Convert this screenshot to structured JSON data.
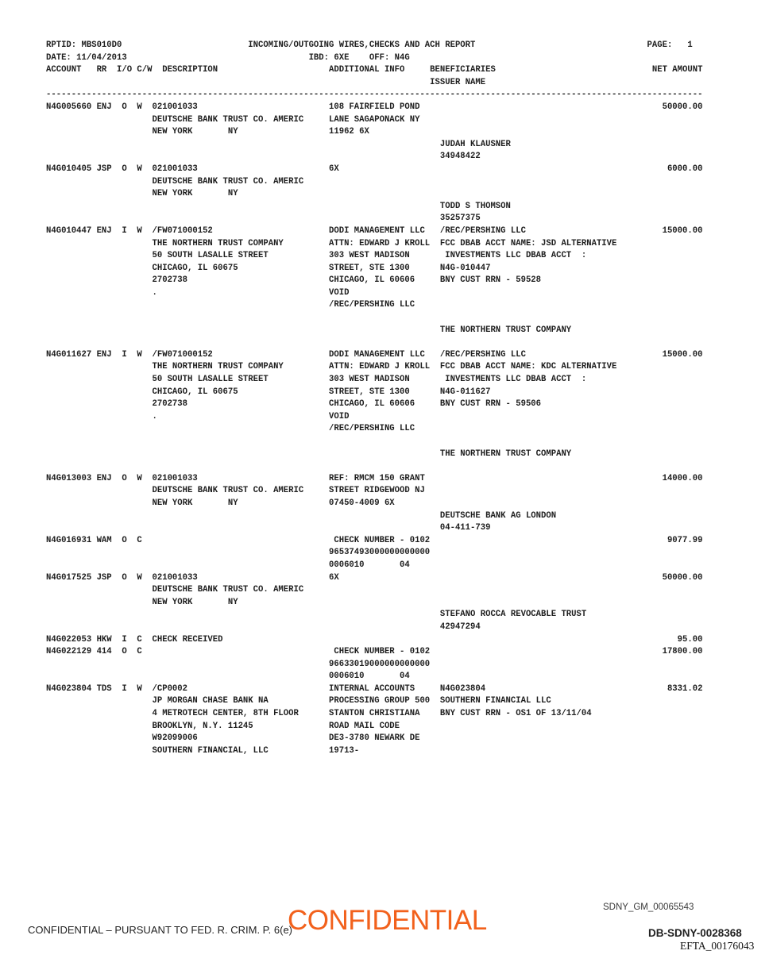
{
  "meta": {
    "rptid": "MBS010D0",
    "title": "INCOMING/OUTGOING WIRES,CHECKS AND ACH REPORT",
    "date": "11/04/2013",
    "page_label": "PAGE:",
    "page_number": "1",
    "ibd": "6XE",
    "off": "N4G",
    "column_headers": [
      "ACCOUNT",
      "RR",
      "I/O",
      "C/W",
      "DESCRIPTION",
      "ADDITIONAL INFO",
      "BENEFICIARIES",
      "ISSUER NAME",
      "NET AMOUNT"
    ]
  },
  "entries_summary": [
    {
      "account": "N4G005660",
      "rr": "ENJ",
      "io": "O",
      "cw": "W",
      "description": "021001033 DEUTSCHE BANK TRUST CO. AMERIC NEW YORK NY",
      "additional_info": "108 FAIRFIELD POND LANE SAGAPONACK NY 11962 6X",
      "issuer": "JUDAH KLAUSNER 34948422",
      "net_amount": "50000.00"
    },
    {
      "account": "N4G010405",
      "rr": "JSP",
      "io": "O",
      "cw": "W",
      "description": "021001033 DEUTSCHE BANK TRUST CO. AMERIC NEW YORK NY",
      "additional_info": "6X",
      "issuer": "TODD S THOMSON 35257375",
      "net_amount": "6000.00"
    },
    {
      "account": "N4G010447",
      "rr": "ENJ",
      "io": "I",
      "cw": "W",
      "description": "/FW071000152 THE NORTHERN TRUST COMPANY 50 SOUTH LASALLE STREET CHICAGO, IL 60675 2702738 .",
      "additional_info": "DODI MANAGEMENT LLC ATTN: EDWARD J KROLL 303 WEST MADISON STREET, STE 1300 CHICAGO, IL 60606 VOID /REC/PERSHING LLC",
      "beneficiaries": "/REC/PERSHING LLC FCC DBAB ACCT NAME: JSD ALTERNATIVE INVESTMENTS LLC DBAB ACCT : N4G-010447 BNY CUST RRN - 59528",
      "issuer": "THE NORTHERN TRUST COMPANY",
      "net_amount": "15000.00"
    },
    {
      "account": "N4G011627",
      "rr": "ENJ",
      "io": "I",
      "cw": "W",
      "description": "/FW071000152 THE NORTHERN TRUST COMPANY 50 SOUTH LASALLE STREET CHICAGO, IL 60675 2702738 .",
      "additional_info": "DODI MANAGEMENT LLC ATTN: EDWARD J KROLL 303 WEST MADISON STREET, STE 1300 CHICAGO, IL 60606 VOID /REC/PERSHING LLC",
      "beneficiaries": "/REC/PERSHING LLC FCC DBAB ACCT NAME: KDC ALTERNATIVE INVESTMENTS LLC DBAB ACCT : N4G-011627 BNY CUST RRN - 59506",
      "issuer": "THE NORTHERN TRUST COMPANY",
      "net_amount": "15000.00"
    },
    {
      "account": "N4G013003",
      "rr": "ENJ",
      "io": "O",
      "cw": "W",
      "description": "021001033 DEUTSCHE BANK TRUST CO. AMERIC NEW YORK NY",
      "additional_info": "REF: RMCM 150 GRANT STREET RIDGEWOOD NJ 07450-4009 6X",
      "issuer": "DEUTSCHE BANK AG LONDON 04-411-739",
      "net_amount": "14000.00"
    },
    {
      "account": "N4G016931",
      "rr": "WAM",
      "io": "O",
      "cw": "C",
      "additional_info": "CHECK NUMBER - 0102 96537493000000000000 0006010 04",
      "net_amount": "9077.99"
    },
    {
      "account": "N4G017525",
      "rr": "JSP",
      "io": "O",
      "cw": "W",
      "description": "021001033 DEUTSCHE BANK TRUST CO. AMERIC NEW YORK NY",
      "additional_info": "6X",
      "issuer": "STEFANO ROCCA REVOCABLE TRUST 42947294",
      "net_amount": "50000.00"
    },
    {
      "account": "N4G022053",
      "rr": "HKW",
      "io": "I",
      "cw": "C",
      "description": "CHECK RECEIVED",
      "net_amount": "95.00"
    },
    {
      "account": "N4G022129",
      "rr": "414",
      "io": "O",
      "cw": "C",
      "additional_info": "CHECK NUMBER - 0102 96633019000000000000 0006010 04",
      "net_amount": "17800.00"
    },
    {
      "account": "N4G023804",
      "rr": "TDS",
      "io": "I",
      "cw": "W",
      "description": "/CP0002 JP MORGAN CHASE BANK NA 4 METROTECH CENTER, 8TH FLOOR BROOKLYN, N.Y. 11245 W92099006 SOUTHERN FINANCIAL, LLC",
      "additional_info": "INTERNAL ACCOUNTS PROCESSING GROUP 500 STANTON CHRISTIANA ROAD MAIL CODE DE3-3780 NEWARK DE 19713-",
      "beneficiaries": "N4G023804 SOUTHERN FINANCIAL LLC BNY CUST RRN - OS1 OF 13/11/04",
      "net_amount": "8331.02"
    }
  ],
  "report": {
    "lines": [
      [
        [
          0,
          "RPTID: MBS010D0"
        ],
        [
          40,
          "INCOMING/OUTGOING WIRES,CHECKS AND ACH REPORT"
        ],
        [
          119,
          "PAGE:"
        ],
        [
          127,
          "1"
        ]
      ],
      [
        [
          0,
          "DATE: 11/04/2013"
        ],
        [
          52,
          "IBD: 6XE    OFF: N4G"
        ]
      ],
      [
        [
          0,
          "ACCOUNT   RR  I/O C/W  DESCRIPTION"
        ],
        [
          56,
          "ADDITIONAL INFO"
        ],
        [
          76,
          "BENEFICIARIES"
        ],
        [
          120,
          "NET AMOUNT"
        ]
      ],
      [
        [
          76,
          "ISSUER NAME"
        ]
      ],
      [
        [
          0,
          "----------------------------------------------------------------------------------------------------------------------------------"
        ]
      ],
      [
        [
          0,
          "N4G005660 ENJ  O  W  021001033"
        ],
        [
          56,
          "108 FAIRFIELD POND"
        ],
        [
          122,
          "50000.00"
        ]
      ],
      [
        [
          21,
          "DEUTSCHE BANK TRUST CO. AMERIC"
        ],
        [
          56,
          "LANE SAGAPONACK NY"
        ]
      ],
      [
        [
          21,
          "NEW YORK"
        ],
        [
          36,
          "NY"
        ],
        [
          56,
          "11962 6X"
        ]
      ],
      [
        [
          78,
          "JUDAH KLAUSNER"
        ]
      ],
      [
        [
          78,
          "34948422"
        ]
      ],
      [
        [
          0,
          "N4G010405 JSP  O  W  021001033"
        ],
        [
          56,
          "6X"
        ],
        [
          123,
          "6000.00"
        ]
      ],
      [
        [
          21,
          "DEUTSCHE BANK TRUST CO. AMERIC"
        ]
      ],
      [
        [
          21,
          "NEW YORK"
        ],
        [
          36,
          "NY"
        ]
      ],
      [
        [
          78,
          "TODD S THOMSON"
        ]
      ],
      [
        [
          78,
          "35257375"
        ]
      ],
      [
        [
          0,
          "N4G010447 ENJ  I  W  /FW071000152"
        ],
        [
          56,
          "DODI MANAGEMENT LLC"
        ],
        [
          78,
          "/REC/PERSHING LLC"
        ],
        [
          122,
          "15000.00"
        ]
      ],
      [
        [
          21,
          "THE NORTHERN TRUST COMPANY"
        ],
        [
          56,
          "ATTN: EDWARD J KROLL"
        ],
        [
          78,
          "FCC DBAB ACCT NAME: JSD ALTERNATIVE"
        ]
      ],
      [
        [
          21,
          "50 SOUTH LASALLE STREET"
        ],
        [
          56,
          "303 WEST MADISON"
        ],
        [
          79,
          "INVESTMENTS LLC DBAB ACCT  :"
        ]
      ],
      [
        [
          21,
          "CHICAGO, IL 60675"
        ],
        [
          56,
          "STREET, STE 1300"
        ],
        [
          78,
          "N4G-010447"
        ]
      ],
      [
        [
          21,
          "2702738"
        ],
        [
          56,
          "CHICAGO, IL 60606"
        ],
        [
          78,
          "BNY CUST RRN - 59528"
        ]
      ],
      [
        [
          21,
          "."
        ],
        [
          56,
          "VOID"
        ]
      ],
      [
        [
          56,
          "/REC/PERSHING LLC"
        ]
      ],
      [],
      [
        [
          78,
          "THE NORTHERN TRUST COMPANY"
        ]
      ],
      [],
      [
        [
          0,
          "N4G011627 ENJ  I  W  /FW071000152"
        ],
        [
          56,
          "DODI MANAGEMENT LLC"
        ],
        [
          78,
          "/REC/PERSHING LLC"
        ],
        [
          122,
          "15000.00"
        ]
      ],
      [
        [
          21,
          "THE NORTHERN TRUST COMPANY"
        ],
        [
          56,
          "ATTN: EDWARD J KROLL"
        ],
        [
          78,
          "FCC DBAB ACCT NAME: KDC ALTERNATIVE"
        ]
      ],
      [
        [
          21,
          "50 SOUTH LASALLE STREET"
        ],
        [
          56,
          "303 WEST MADISON"
        ],
        [
          79,
          "INVESTMENTS LLC DBAB ACCT  :"
        ]
      ],
      [
        [
          21,
          "CHICAGO, IL 60675"
        ],
        [
          56,
          "STREET, STE 1300"
        ],
        [
          78,
          "N4G-011627"
        ]
      ],
      [
        [
          21,
          "2702738"
        ],
        [
          56,
          "CHICAGO, IL 60606"
        ],
        [
          78,
          "BNY CUST RRN - 59506"
        ]
      ],
      [
        [
          21,
          "."
        ],
        [
          56,
          "VOID"
        ]
      ],
      [
        [
          56,
          "/REC/PERSHING LLC"
        ]
      ],
      [],
      [
        [
          78,
          "THE NORTHERN TRUST COMPANY"
        ]
      ],
      [],
      [
        [
          0,
          "N4G013003 ENJ  O  W  021001033"
        ],
        [
          56,
          "REF: RMCM 150 GRANT"
        ],
        [
          122,
          "14000.00"
        ]
      ],
      [
        [
          21,
          "DEUTSCHE BANK TRUST CO. AMERIC"
        ],
        [
          56,
          "STREET RIDGEWOOD NJ"
        ]
      ],
      [
        [
          21,
          "NEW YORK"
        ],
        [
          36,
          "NY"
        ],
        [
          56,
          "07450-4009 6X"
        ]
      ],
      [
        [
          78,
          "DEUTSCHE BANK AG LONDON"
        ]
      ],
      [
        [
          78,
          "04-411-739"
        ]
      ],
      [
        [
          0,
          "N4G016931 WAM  O  C"
        ],
        [
          57,
          "CHECK NUMBER - 0102"
        ],
        [
          123,
          "9077.99"
        ]
      ],
      [
        [
          56,
          "96537493000000000000"
        ]
      ],
      [
        [
          56,
          "0006010"
        ],
        [
          70,
          "04"
        ]
      ],
      [
        [
          0,
          "N4G017525 JSP  O  W  021001033"
        ],
        [
          56,
          "6X"
        ],
        [
          122,
          "50000.00"
        ]
      ],
      [
        [
          21,
          "DEUTSCHE BANK TRUST CO. AMERIC"
        ]
      ],
      [
        [
          21,
          "NEW YORK"
        ],
        [
          36,
          "NY"
        ]
      ],
      [
        [
          78,
          "STEFANO ROCCA REVOCABLE TRUST"
        ]
      ],
      [
        [
          78,
          "42947294"
        ]
      ],
      [
        [
          0,
          "N4G022053 HKW  I  C  CHECK RECEIVED"
        ],
        [
          125,
          "95.00"
        ]
      ],
      [
        [
          0,
          "N4G022129 414  O  C"
        ],
        [
          57,
          "CHECK NUMBER - 0102"
        ],
        [
          122,
          "17800.00"
        ]
      ],
      [
        [
          56,
          "96633019000000000000"
        ]
      ],
      [
        [
          56,
          "0006010"
        ],
        [
          70,
          "04"
        ]
      ],
      [
        [
          0,
          "N4G023804 TDS  I  W  /CP0002"
        ],
        [
          56,
          "INTERNAL ACCOUNTS"
        ],
        [
          78,
          "N4G023804"
        ],
        [
          123,
          "8331.02"
        ]
      ],
      [
        [
          21,
          "JP MORGAN CHASE BANK NA"
        ],
        [
          56,
          "PROCESSING GROUP 500"
        ],
        [
          78,
          "SOUTHERN FINANCIAL LLC"
        ]
      ],
      [
        [
          21,
          "4 METROTECH CENTER, 8TH FLOOR"
        ],
        [
          56,
          "STANTON CHRISTIANA"
        ],
        [
          78,
          "BNY CUST RRN - OS1 OF 13/11/04"
        ]
      ],
      [
        [
          21,
          "BROOKLYN, N.Y. 11245"
        ],
        [
          56,
          "ROAD MAIL CODE"
        ]
      ],
      [
        [
          21,
          "W92099006"
        ],
        [
          56,
          "DE3-3780 NEWARK DE"
        ]
      ],
      [
        [
          21,
          "SOUTHERN FINANCIAL, LLC"
        ],
        [
          56,
          "19713-"
        ]
      ]
    ]
  },
  "footer": {
    "stamp_doc_id": "SDNY_GM_00065543",
    "confidential_stamp": "CONFIDENTIAL",
    "stamp_color": "#f2611c",
    "left_notice": "CONFIDENTIAL – PURSUANT TO FED. R. CRIM. P. 6(e)",
    "bates_number": "DB-SDNY-0028368",
    "efta_number": "EFTA_00176043"
  }
}
